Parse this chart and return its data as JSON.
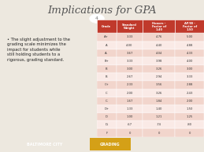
{
  "title": "Implications for GPA",
  "slide_bg": "#ede8df",
  "left_bg": "#9cb8c8",
  "bullet_text": "The slight adjustment to the\ngrading scale minimizes the\nimpact for students while\nstill holding students to a\nrigorous, grading standard.",
  "table_headers": [
    "Grade",
    "Standard\nWeight",
    "Honors -\nFactor of\n1.40",
    "AP/IB -\nFactor of\n1.50"
  ],
  "table_data": [
    [
      "A+",
      "3.33",
      "4.76",
      "5.00"
    ],
    [
      "A",
      "4.00",
      "4.40",
      "4.88"
    ],
    [
      "A-",
      "3.67",
      "4.04",
      "4.33"
    ],
    [
      "B+",
      "3.33",
      "3.98",
      "4.00"
    ],
    [
      "B",
      "3.00",
      "3.26",
      "3.00"
    ],
    [
      "B-",
      "2.67",
      "2.94",
      "3.33"
    ],
    [
      "C+",
      "2.33",
      "3.56",
      "2.88"
    ],
    [
      "C",
      "2.00",
      "3.26",
      "2.43"
    ],
    [
      "C-",
      "1.67",
      "1.84",
      "2.00"
    ],
    [
      "D+",
      "1.33",
      "1.40",
      "1.50"
    ],
    [
      "D",
      "1.00",
      "1.21",
      "1.25"
    ],
    [
      "D-",
      ".67",
      ".74",
      ".80"
    ],
    [
      "F",
      "0",
      "0",
      "0"
    ]
  ],
  "header_bg": "#c0392b",
  "header_text_color": "#ffffff",
  "row_even_bg": "#f2d5cc",
  "row_odd_bg": "#faeae6",
  "footer_bg": "#7a8c7e",
  "footer_left": "BALTIMORE CITY",
  "footer_orange_bg": "#d4a017",
  "footer_right": "GRADING",
  "page_num": "4",
  "title_color": "#555555",
  "left_text_color": "#222222",
  "border_color": "#cccccc"
}
